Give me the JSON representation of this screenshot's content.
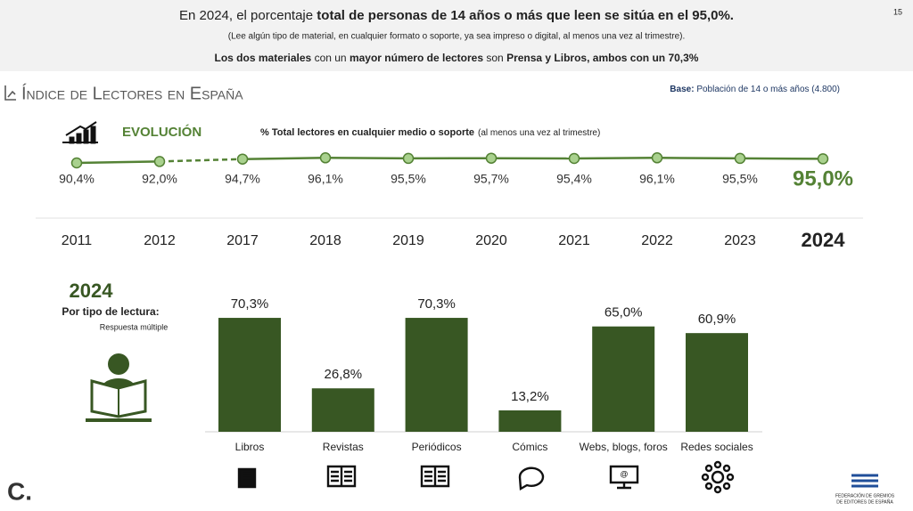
{
  "page_number": "15",
  "header": {
    "line1": {
      "normal": "En 2024, el porcentaje",
      "bold": "total de personas de 14 años o más que leen se sitúa en el 95,0%."
    },
    "line2": "(Lee algún tipo de material, en cualquier formato o soporte, ya sea impreso o digital, al menos una vez al trimestre).",
    "line3": [
      "Los dos materiales",
      "con un",
      "mayor número de lectores",
      "son",
      "Prensa y Libros, ambos con un 70,3%"
    ]
  },
  "title": "Índice de Lectores en España",
  "base": {
    "label": "Base:",
    "text": "Población de 14 o más años (4.800)"
  },
  "footer": {
    "logo_mark": "C.",
    "publisher": [
      "FEDERACIÓN DE GREMIOS",
      "DE EDITORES DE ESPAÑA"
    ]
  },
  "chart_data": [
    {
      "type": "line",
      "title": "EVOLUCIÓN",
      "subtitle": "% Total lectores en cualquier medio o soporte",
      "subtitle_note": "(al menos una vez al trimestre)",
      "categories": [
        "2011",
        "2012",
        "2017",
        "2018",
        "2019",
        "2020",
        "2021",
        "2022",
        "2023",
        "2024"
      ],
      "values": [
        90.4,
        92.0,
        94.7,
        96.1,
        95.5,
        95.7,
        95.4,
        96.1,
        95.5,
        95.0
      ],
      "value_labels": [
        "90,4%",
        "92,0%",
        "94,7%",
        "96,1%",
        "95,5%",
        "95,7%",
        "95,4%",
        "96,1%",
        "95,5%",
        "95,0%"
      ],
      "color": "#548235"
    },
    {
      "type": "bar",
      "title": "2024",
      "subtitle": "Por tipo de lectura:",
      "note": "Respuesta múltiple",
      "categories": [
        "Libros",
        "Revistas",
        "Periódicos",
        "Cómics",
        "Webs, blogs, foros",
        "Redes sociales"
      ],
      "values": [
        70.3,
        26.8,
        70.3,
        13.2,
        65.0,
        60.9
      ],
      "value_labels": [
        "70,3%",
        "26,8%",
        "70,3%",
        "13,2%",
        "65,0%",
        "60,9%"
      ],
      "color": "#385723"
    }
  ]
}
